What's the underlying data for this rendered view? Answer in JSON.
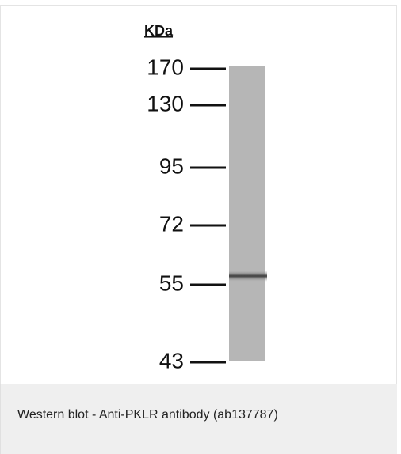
{
  "figure": {
    "unit": "KDa",
    "markers": [
      170,
      130,
      95,
      72,
      55,
      43
    ]
  },
  "caption": "Western blot - Anti-PKLR antibody (ab137787)"
}
